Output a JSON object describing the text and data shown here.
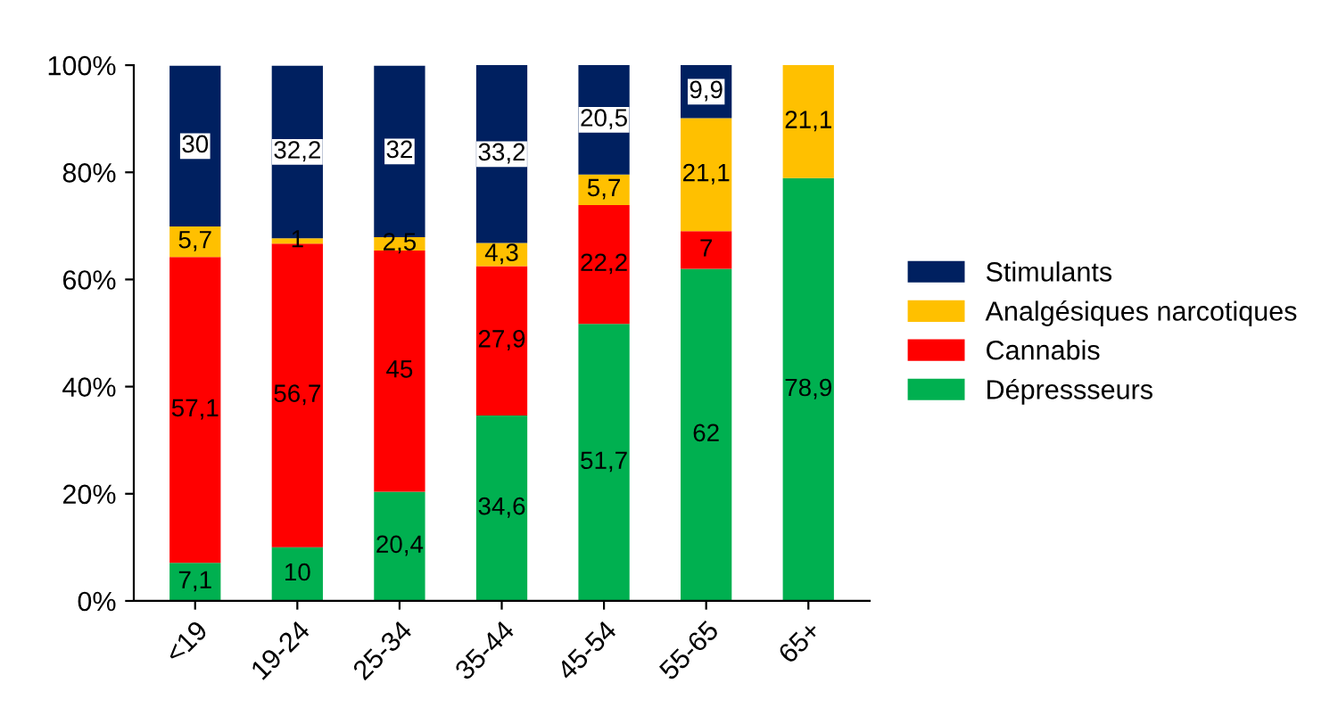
{
  "chart_data": {
    "type": "bar",
    "stacked": true,
    "categories": [
      "<19",
      "19-24",
      "25-34",
      "35-44",
      "45-54",
      "55-65",
      "65+"
    ],
    "series": [
      {
        "name": "Dépressseurs",
        "color": "#00b050",
        "values": [
          7.1,
          10,
          20.4,
          34.6,
          51.7,
          62,
          78.9
        ],
        "value_labels": [
          "7,1",
          "10",
          "20,4",
          "34,6",
          "51,7",
          "62",
          "78,9"
        ]
      },
      {
        "name": "Cannabis",
        "color": "#ff0000",
        "values": [
          57.1,
          56.7,
          45,
          27.9,
          22.2,
          7,
          null
        ],
        "value_labels": [
          "57,1",
          "56,7",
          "45",
          "27,9",
          "22,2",
          "7",
          null
        ]
      },
      {
        "name": "Analgésiques narcotiques",
        "color": "#ffc000",
        "values": [
          5.7,
          1,
          2.5,
          4.3,
          5.7,
          21.1,
          21.1
        ],
        "value_labels": [
          "5,7",
          "1",
          "2,5",
          "4,3",
          "5,7",
          "21,1",
          "21,1"
        ]
      },
      {
        "name": "Stimulants",
        "color": "#002060",
        "values": [
          30,
          32.2,
          32,
          33.2,
          20.5,
          9.9,
          null
        ],
        "value_labels": [
          "30",
          "32,2",
          "32",
          "33,2",
          "20,5",
          "9,9",
          null
        ]
      }
    ],
    "ylim": [
      0,
      100
    ],
    "yticks": [
      {
        "value": 0,
        "label": "0%"
      },
      {
        "value": 20,
        "label": "20%"
      },
      {
        "value": 40,
        "label": "40%"
      },
      {
        "value": 60,
        "label": "60%"
      },
      {
        "value": 80,
        "label": "80%"
      },
      {
        "value": 100,
        "label": "100%"
      }
    ],
    "grid": false,
    "legend": "right"
  }
}
